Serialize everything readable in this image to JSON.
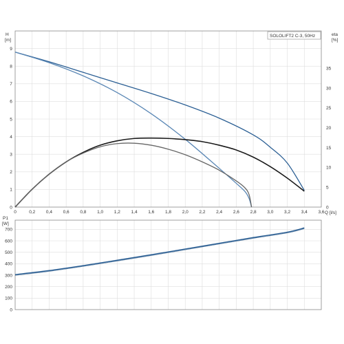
{
  "chart_data": [
    {
      "type": "line",
      "title": "SOLOLIFT2 C-3, 50Hz",
      "xlabel": "Q [l/s]",
      "ylabel": "H\n[m]",
      "ylabel_right": "eta\n[%]",
      "xlim": [
        0,
        3.6
      ],
      "ylim": [
        0,
        10
      ],
      "ylim_right": [
        0,
        44.4
      ],
      "grid": true,
      "x_ticks": [
        "0",
        "0,2",
        "0,4",
        "0,6",
        "0,8",
        "1,0",
        "1,2",
        "1,4",
        "1,6",
        "1,8",
        "2,0",
        "2,2",
        "2,4",
        "2,6",
        "2,8",
        "3,0",
        "3,2",
        "3,4",
        "3,6"
      ],
      "y_ticks": [
        "0",
        "1",
        "2",
        "3",
        "4",
        "5",
        "6",
        "7",
        "8",
        "9"
      ],
      "y_ticks_right": [
        "0",
        "5",
        "10",
        "15",
        "20",
        "25",
        "30",
        "35"
      ],
      "series": [
        {
          "axis": "left",
          "color": "#2b5f94",
          "x": [
            0,
            0.4,
            0.8,
            1.2,
            1.6,
            2.0,
            2.4,
            2.8,
            3.0,
            3.2,
            3.4
          ],
          "values": [
            8.8,
            8.25,
            7.65,
            7.05,
            6.45,
            5.8,
            5.05,
            4.1,
            3.4,
            2.5,
            0.95
          ]
        },
        {
          "axis": "left",
          "color": "#5a87b5",
          "x": [
            0,
            0.4,
            0.8,
            1.2,
            1.6,
            2.0,
            2.4,
            2.6,
            2.7,
            2.75,
            2.78
          ],
          "values": [
            8.8,
            8.2,
            7.45,
            6.5,
            5.3,
            3.85,
            2.2,
            1.35,
            0.9,
            0.5,
            0
          ]
        },
        {
          "axis": "right",
          "color": "#1a1a1a",
          "x": [
            0,
            0.2,
            0.4,
            0.6,
            0.8,
            1.0,
            1.2,
            1.4,
            1.6,
            1.8,
            2.0,
            2.2,
            2.4,
            2.6,
            2.8,
            3.0,
            3.2,
            3.4
          ],
          "values": [
            0,
            4.5,
            8.3,
            11.4,
            13.8,
            15.6,
            16.7,
            17.3,
            17.4,
            17.3,
            17.0,
            16.5,
            15.6,
            14.4,
            12.6,
            10.2,
            7.3,
            4.0
          ]
        },
        {
          "axis": "right",
          "color": "#666666",
          "x": [
            0,
            0.2,
            0.4,
            0.6,
            0.8,
            1.0,
            1.2,
            1.4,
            1.6,
            1.8,
            2.0,
            2.2,
            2.4,
            2.6,
            2.7,
            2.75,
            2.78
          ],
          "values": [
            0,
            4.5,
            8.3,
            11.4,
            13.6,
            15.2,
            16.0,
            16.1,
            15.6,
            14.6,
            13.2,
            11.4,
            9.3,
            6.6,
            4.9,
            3.2,
            0
          ]
        }
      ]
    },
    {
      "type": "line",
      "title": "",
      "xlabel": "",
      "ylabel": "P1\n[W]",
      "xlim": [
        0,
        3.6
      ],
      "ylim": [
        0,
        780
      ],
      "grid": true,
      "y_ticks": [
        "0",
        "100",
        "200",
        "300",
        "400",
        "500",
        "600",
        "700"
      ],
      "series": [
        {
          "axis": "left",
          "color": "#2b5f94",
          "x": [
            0,
            0.4,
            0.8,
            1.2,
            1.6,
            2.0,
            2.4,
            2.8,
            3.2,
            3.4
          ],
          "values": [
            305,
            340,
            383,
            430,
            478,
            528,
            578,
            628,
            675,
            712
          ]
        }
      ]
    }
  ]
}
